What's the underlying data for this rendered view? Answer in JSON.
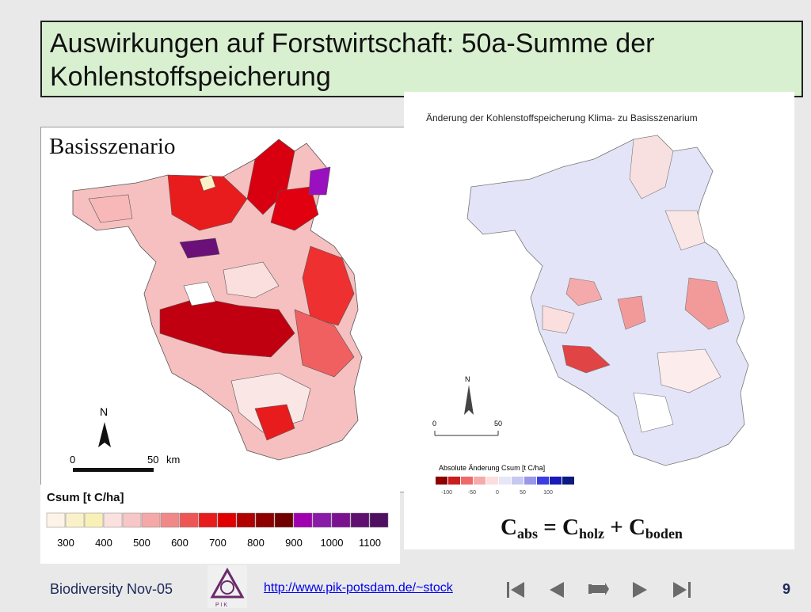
{
  "slide": {
    "title": "Auswirkungen auf Forstwirtschaft: 50a-Summe der Kohlenstoffspeicherung",
    "footer_text": "Biodiversity Nov-05",
    "footer_link": "http://www.pik-potsdam.de/~stock",
    "page_number": "9",
    "logo_text": "P I K"
  },
  "left_map": {
    "label": "Basisszenario",
    "north_label": "N",
    "scale_start": "0",
    "scale_end": "50",
    "scale_unit": "km",
    "legend_title": "Csum [t C/ha]",
    "legend_ticks": [
      "300",
      "400",
      "500",
      "600",
      "700",
      "800",
      "900",
      "1000",
      "1100"
    ],
    "legend_colors": [
      "#fdf3e6",
      "#fbf1c8",
      "#f9f0b8",
      "#fbe0e0",
      "#f7c6c6",
      "#f4a8a8",
      "#f18888",
      "#ee5555",
      "#e81c1c",
      "#e00000",
      "#b00000",
      "#8e0000",
      "#700000",
      "#a000b0",
      "#8a1aa8",
      "#7a1290",
      "#601070",
      "#501060"
    ]
  },
  "right_map": {
    "title": "Änderung der Kohlenstoffspeicherung Klima- zu Basisszenarium",
    "north_label": "N",
    "scale_start": "0",
    "scale_end": "50",
    "legend_title": "Absolute Änderung Csum [t C/ha]",
    "legend_ticks": [
      "-100",
      "-50",
      "0",
      "50",
      "100"
    ],
    "legend_colors": [
      "#8e0000",
      "#c81e1e",
      "#ee6a6a",
      "#f6aaaa",
      "#fcdede",
      "#e6e6f6",
      "#c8c8f0",
      "#9898e8",
      "#3c3ce0",
      "#1a1ab8",
      "#0a1a80"
    ]
  },
  "formula": {
    "main": "C",
    "sub1": "abs",
    "eq": " = C",
    "sub2": "holz",
    "plus": " + C",
    "sub3": "boden"
  }
}
